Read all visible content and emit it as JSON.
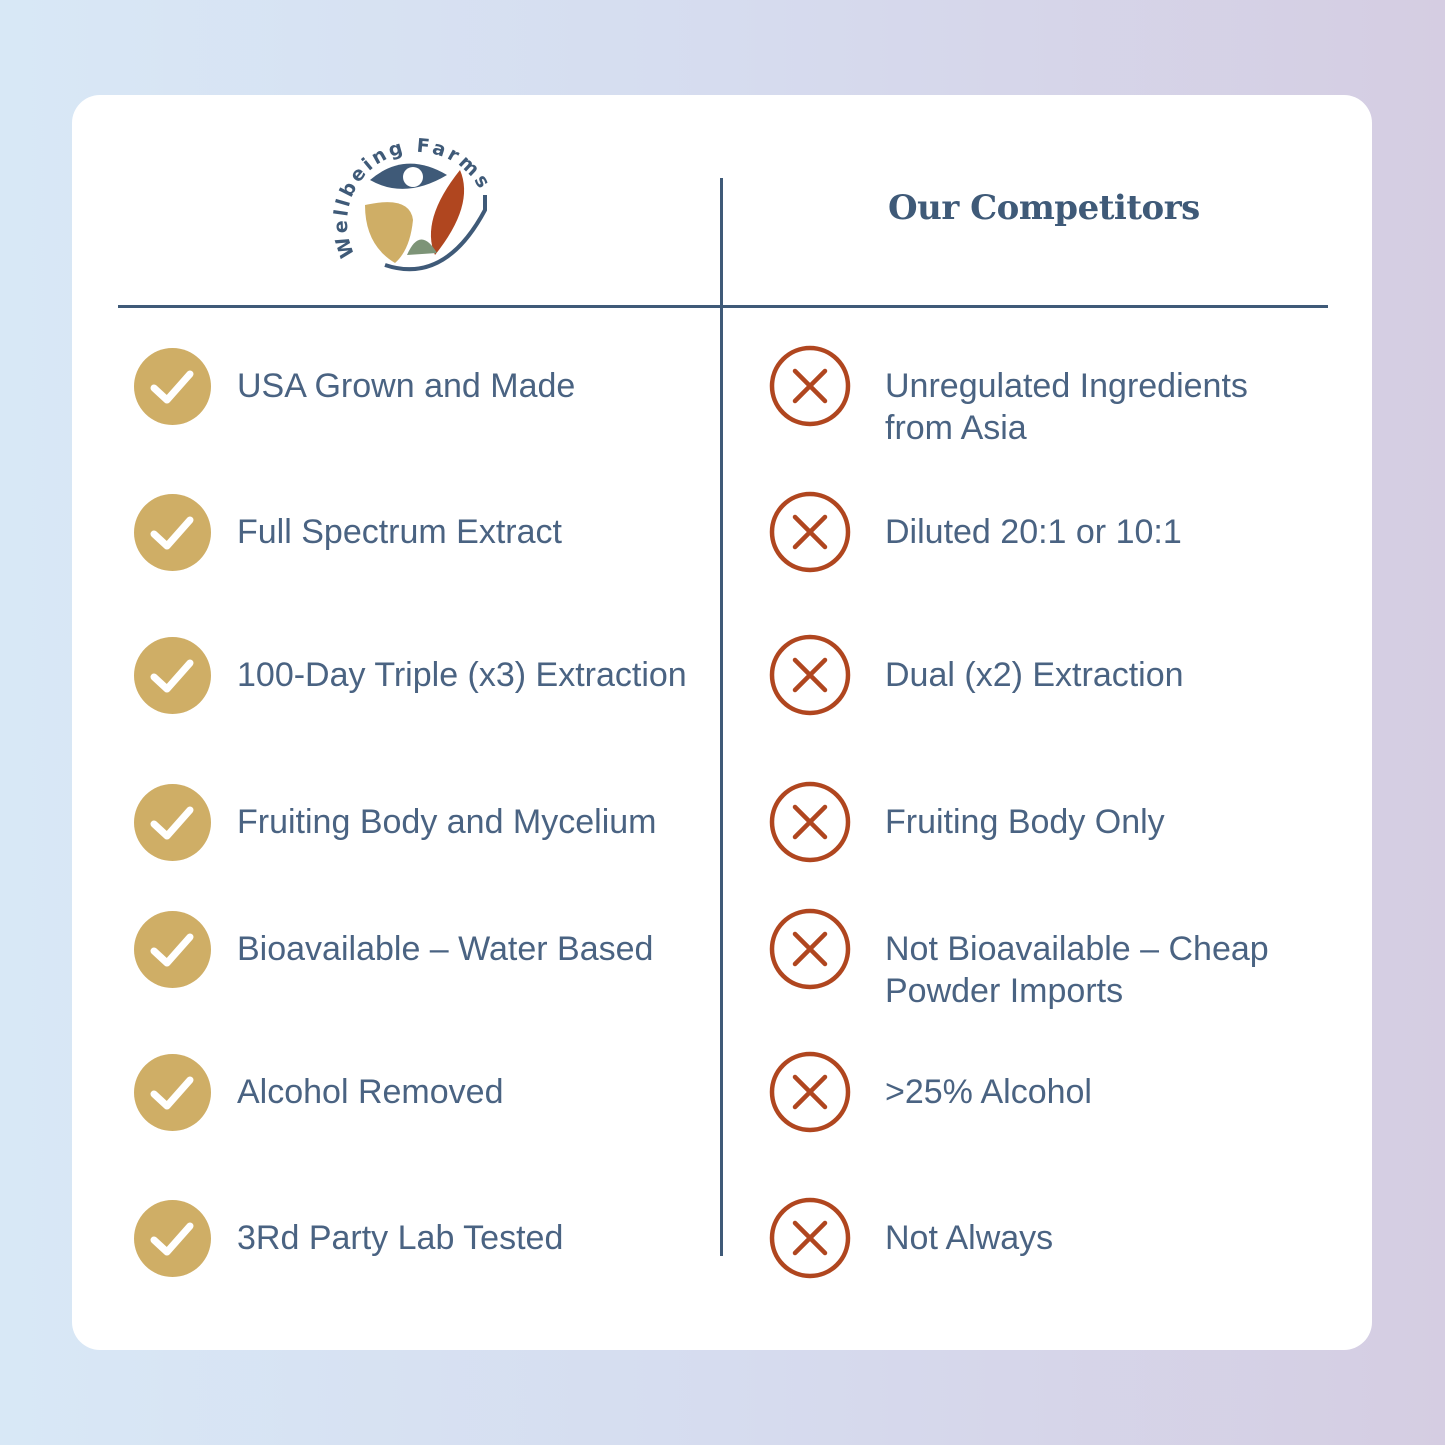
{
  "brand": {
    "logo_text": "Wellbeing Farms"
  },
  "header": {
    "competitors_title": "Our Competitors"
  },
  "colors": {
    "check": "#cfae66",
    "cross": "#b0461f",
    "navy": "#3f5a78"
  },
  "rows": [
    {
      "ours": "USA Grown and Made",
      "theirs": "Unregulated Ingredients from Asia"
    },
    {
      "ours": "Full Spectrum Extract",
      "theirs": "Diluted 20:1 or 10:1"
    },
    {
      "ours": "100-Day Triple (x3) Extraction",
      "theirs": "Dual (x2) Extraction"
    },
    {
      "ours": "Fruiting Body and Mycelium",
      "theirs": "Fruiting Body Only"
    },
    {
      "ours": "Bioavailable – Water Based",
      "theirs": "Not Bioavailable – Cheap Powder Imports"
    },
    {
      "ours": "Alcohol Removed",
      "theirs": ">25% Alcohol"
    },
    {
      "ours": "3Rd Party Lab Tested",
      "theirs": "Not Always"
    }
  ]
}
